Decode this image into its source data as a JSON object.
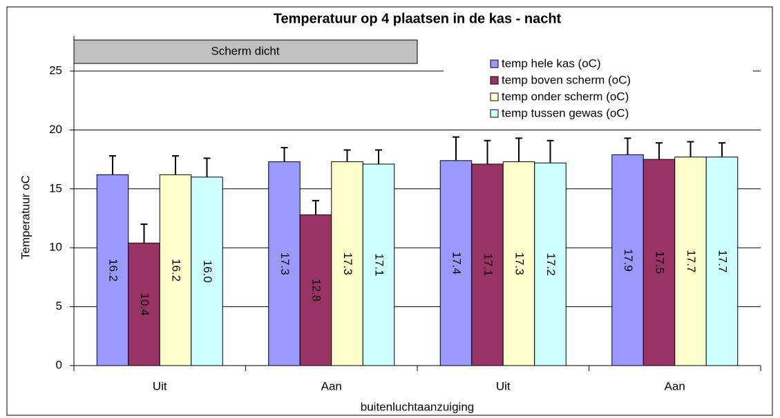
{
  "chart_data": {
    "type": "bar",
    "title": "Temperatuur op 4 plaatsen in de kas - nacht",
    "x_label": "buitenluchtaanzuiging",
    "y_label": "Temperatuur oC",
    "annotations": [
      {
        "text": "Scherm dicht"
      }
    ],
    "categories": [
      "Uit",
      "Aan",
      "Uit",
      "Aan"
    ],
    "series": [
      {
        "name": "temp hele kas (oC)",
        "color": "#9999ff",
        "values": [
          16.2,
          17.3,
          17.4,
          17.9
        ],
        "value_labels": [
          "16.2",
          "17.3",
          "17.4",
          "17.9"
        ],
        "errors": [
          1.6,
          1.2,
          2.0,
          1.4
        ]
      },
      {
        "name": "temp boven scherm (oC)",
        "color": "#993366",
        "values": [
          10.4,
          12.8,
          17.1,
          17.5
        ],
        "value_labels": [
          "10.4",
          "12.8",
          "17.1",
          "17.5"
        ],
        "errors": [
          1.6,
          1.2,
          2.0,
          1.4
        ]
      },
      {
        "name": "temp onder scherm (oC)",
        "color": "#ffffcc",
        "values": [
          16.2,
          17.3,
          17.3,
          17.7
        ],
        "value_labels": [
          "16.2",
          "17.3",
          "17.3",
          "17.7"
        ],
        "errors": [
          1.6,
          1.0,
          2.0,
          1.3
        ]
      },
      {
        "name": "temp tussen gewas (oC)",
        "color": "#ccffff",
        "values": [
          16.0,
          17.1,
          17.2,
          17.7
        ],
        "value_labels": [
          "16.0",
          "17.1",
          "17.2",
          "17.7"
        ],
        "errors": [
          1.6,
          1.2,
          1.9,
          1.2
        ]
      }
    ],
    "ylim": [
      0,
      28
    ],
    "yticks": [
      0,
      5,
      10,
      15,
      20,
      25
    ],
    "grid": true,
    "legend": "upper right"
  }
}
